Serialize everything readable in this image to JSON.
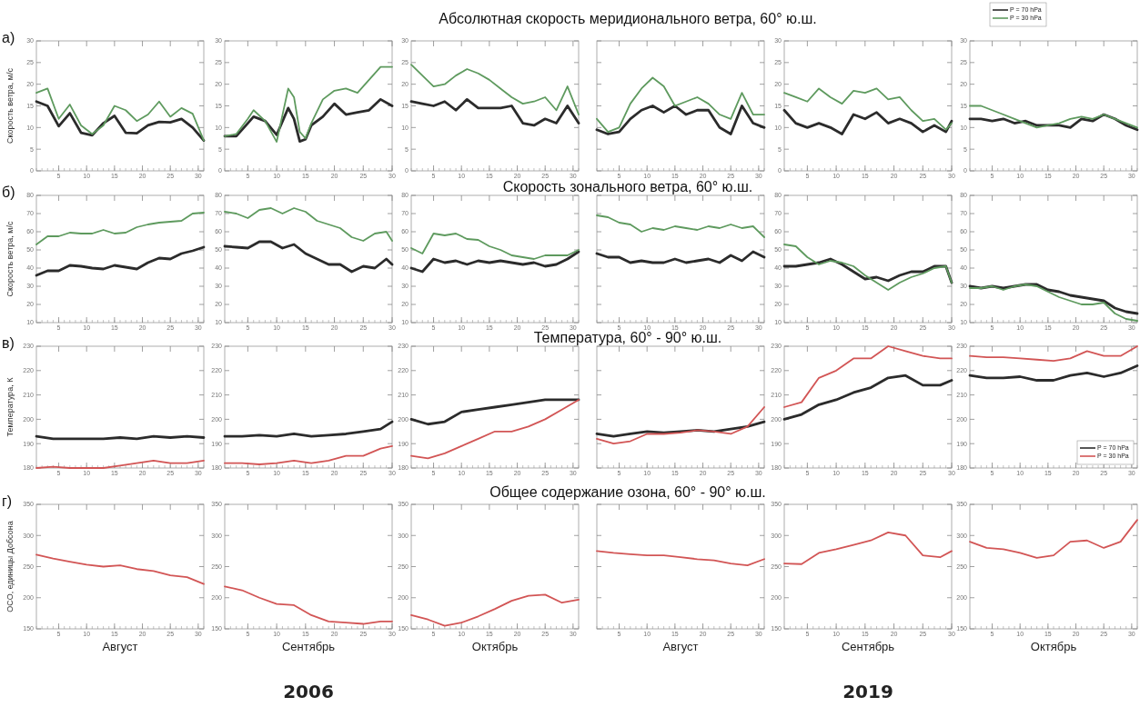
{
  "chart_data": [
    {
      "type": "line",
      "ylabel": "Скорость ветра, м/с",
      "annotations": [
        "а)"
      ],
      "x": [
        1,
        3,
        5,
        7,
        9,
        11,
        13,
        15,
        17,
        19,
        21,
        23,
        25,
        27,
        29,
        31
      ],
      "xlim": [
        1,
        31
      ],
      "xticks": [
        5,
        10,
        15,
        20,
        25,
        30
      ],
      "ylim": [
        0,
        30
      ],
      "yticks": [
        0,
        5,
        10,
        15,
        20,
        25,
        30
      ],
      "series": [
        {
          "color": "#2b2b2b",
          "values": [
            16,
            15,
            10.3,
            13.3,
            8.8,
            8.2,
            11,
            12.7,
            8.8,
            8.7,
            10.5,
            11.3,
            11.2,
            12,
            10,
            7
          ]
        },
        {
          "color": "#5e9a5e",
          "values": [
            18,
            19,
            12,
            15.3,
            10.5,
            8.5,
            10.5,
            15,
            14,
            11.5,
            13,
            16,
            12.5,
            14.5,
            13.2,
            7
          ]
        }
      ]
    },
    {
      "type": "line",
      "x": [
        1,
        3,
        5,
        6,
        8,
        10,
        12,
        13,
        14,
        15,
        16,
        18,
        20,
        22,
        24,
        26,
        28,
        30
      ],
      "xlim": [
        1,
        30
      ],
      "xticks": [
        5,
        10,
        15,
        20,
        25,
        30
      ],
      "ylim": [
        0,
        30
      ],
      "yticks": [
        0,
        5,
        10,
        15,
        20,
        25,
        30
      ],
      "series": [
        {
          "color": "#2b2b2b",
          "values": [
            8,
            8,
            11,
            12.5,
            11.5,
            8.3,
            14.5,
            12,
            6.8,
            7.3,
            10.5,
            12.5,
            15.5,
            13,
            13.5,
            14,
            16.5,
            15
          ]
        },
        {
          "color": "#5e9a5e",
          "values": [
            8,
            8.5,
            12,
            14,
            11.5,
            6.7,
            19,
            17,
            9,
            7.5,
            11,
            16.5,
            18.5,
            19,
            18,
            21,
            24,
            24
          ]
        }
      ]
    },
    {
      "type": "line",
      "x": [
        1,
        3,
        5,
        7,
        9,
        11,
        13,
        15,
        17,
        19,
        21,
        23,
        25,
        27,
        29,
        31
      ],
      "xlim": [
        1,
        31
      ],
      "xticks": [
        5,
        10,
        15,
        20,
        25,
        30
      ],
      "ylim": [
        0,
        30
      ],
      "yticks": [
        0,
        5,
        10,
        15,
        20,
        25,
        30
      ],
      "series": [
        {
          "color": "#2b2b2b",
          "values": [
            16,
            15.5,
            15,
            16,
            14,
            16.5,
            14.5,
            14.5,
            14.5,
            15,
            11,
            10.5,
            12,
            11,
            15,
            11
          ]
        },
        {
          "color": "#5e9a5e",
          "values": [
            24.5,
            22,
            19.5,
            20,
            22,
            23.5,
            22.5,
            21,
            19,
            17,
            15.5,
            16,
            17,
            14,
            19.5,
            13
          ]
        }
      ]
    },
    {
      "type": "line",
      "title": "Абсолютная скорость меридионального ветра, 60° ю.ш.",
      "tick_labels": "x",
      "x": [
        1,
        3,
        5,
        7,
        9,
        11,
        13,
        15,
        17,
        19,
        21,
        23,
        25,
        27,
        29,
        31
      ],
      "xlim": [
        1,
        31
      ],
      "xticks": [
        5,
        10,
        15,
        20,
        25,
        30
      ],
      "ylim": [
        0,
        30
      ],
      "yticks": [
        0,
        5,
        10,
        15,
        20,
        25,
        30
      ],
      "series": [
        {
          "color": "#2b2b2b",
          "values": [
            9.5,
            8.5,
            9,
            12,
            14,
            15,
            13.5,
            15,
            13,
            14,
            14,
            10,
            8.5,
            15,
            11,
            10
          ]
        },
        {
          "color": "#5e9a5e",
          "values": [
            12,
            9,
            10,
            15.5,
            19,
            21.5,
            19.5,
            15,
            16,
            17,
            15.5,
            13,
            12,
            18,
            13,
            13
          ]
        }
      ]
    },
    {
      "type": "line",
      "x": [
        1,
        3,
        5,
        7,
        9,
        11,
        13,
        15,
        17,
        19,
        21,
        23,
        25,
        27,
        29,
        30
      ],
      "xlim": [
        1,
        30
      ],
      "xticks": [
        5,
        10,
        15,
        20,
        25,
        30
      ],
      "ylim": [
        0,
        30
      ],
      "yticks": [
        0,
        5,
        10,
        15,
        20,
        25,
        30
      ],
      "series": [
        {
          "color": "#2b2b2b",
          "values": [
            14,
            11,
            10,
            11,
            10,
            8.5,
            13,
            12,
            13.5,
            11,
            12,
            11,
            9,
            10.5,
            9,
            11.5
          ]
        },
        {
          "color": "#5e9a5e",
          "values": [
            18,
            17,
            16,
            19,
            17,
            15.5,
            18.5,
            18,
            19,
            16.5,
            17,
            14,
            11.5,
            12,
            9.5,
            11
          ]
        }
      ]
    },
    {
      "type": "line",
      "legend": "top left",
      "x": [
        1,
        3,
        5,
        7,
        9,
        11,
        13,
        15,
        17,
        19,
        21,
        23,
        25,
        27,
        29,
        31
      ],
      "xlim": [
        1,
        31
      ],
      "xticks": [
        5,
        10,
        15,
        20,
        25,
        30
      ],
      "ylim": [
        0,
        30
      ],
      "yticks": [
        0,
        5,
        10,
        15,
        20,
        25,
        30
      ],
      "series": [
        {
          "name": "P = 70 hPa",
          "color": "#2b2b2b",
          "values": [
            12,
            12,
            11.5,
            12,
            11,
            11.5,
            10.5,
            10.5,
            10.5,
            10,
            12,
            11.5,
            13,
            12,
            10.5,
            9.5
          ]
        },
        {
          "name": "P = 30 hPa",
          "color": "#5e9a5e",
          "values": [
            15,
            15,
            14,
            13,
            12,
            11,
            10,
            10.5,
            11,
            12,
            12.5,
            12,
            13,
            12,
            11,
            10
          ]
        }
      ]
    },
    {
      "type": "line",
      "ylabel": "Скорость ветра, м/с",
      "annotations": [
        "б)"
      ],
      "x": [
        1,
        3,
        5,
        7,
        9,
        11,
        13,
        15,
        17,
        19,
        21,
        23,
        25,
        27,
        29,
        31
      ],
      "xlim": [
        1,
        31
      ],
      "xticks": [
        5,
        10,
        15,
        20,
        25,
        30
      ],
      "ylim": [
        10,
        80
      ],
      "yticks": [
        10,
        20,
        30,
        40,
        50,
        60,
        70,
        80
      ],
      "series": [
        {
          "color": "#2b2b2b",
          "values": [
            36,
            38.5,
            38.5,
            41.5,
            41,
            40,
            39.5,
            41.5,
            40.5,
            39.5,
            43,
            45.5,
            45,
            48,
            49.5,
            51.5
          ]
        },
        {
          "color": "#5e9a5e",
          "values": [
            53,
            57.5,
            57.5,
            59.5,
            59,
            59,
            61,
            59,
            59.5,
            62.5,
            64,
            65,
            65.5,
            66,
            70,
            70.5
          ]
        }
      ]
    },
    {
      "type": "line",
      "x": [
        1,
        3,
        5,
        7,
        9,
        11,
        13,
        15,
        17,
        19,
        21,
        23,
        25,
        27,
        29,
        30
      ],
      "xlim": [
        1,
        30
      ],
      "xticks": [
        5,
        10,
        15,
        20,
        25,
        30
      ],
      "ylim": [
        10,
        80
      ],
      "yticks": [
        10,
        20,
        30,
        40,
        50,
        60,
        70,
        80
      ],
      "series": [
        {
          "color": "#2b2b2b",
          "values": [
            52,
            51.5,
            51,
            54.5,
            54.5,
            51,
            53,
            48,
            45,
            42,
            42,
            38,
            41,
            40,
            45,
            42
          ]
        },
        {
          "color": "#5e9a5e",
          "values": [
            71,
            70,
            67.5,
            72,
            73,
            70,
            73,
            71,
            66,
            64,
            62,
            57,
            55,
            59,
            60,
            55
          ]
        }
      ]
    },
    {
      "type": "line",
      "x": [
        1,
        3,
        5,
        7,
        9,
        11,
        13,
        15,
        17,
        19,
        21,
        23,
        25,
        27,
        29,
        31
      ],
      "xlim": [
        1,
        31
      ],
      "xticks": [
        5,
        10,
        15,
        20,
        25,
        30
      ],
      "ylim": [
        10,
        80
      ],
      "yticks": [
        10,
        20,
        30,
        40,
        50,
        60,
        70,
        80
      ],
      "series": [
        {
          "color": "#2b2b2b",
          "values": [
            40,
            38,
            45,
            43,
            44,
            42,
            44,
            43,
            44,
            43,
            42,
            43,
            41,
            42,
            45,
            49
          ]
        },
        {
          "color": "#5e9a5e",
          "values": [
            51,
            48,
            59,
            58,
            59,
            56,
            55.5,
            52,
            50,
            47,
            46,
            45,
            47,
            47,
            47,
            50
          ]
        }
      ]
    },
    {
      "type": "line",
      "title": "Скорость зонального ветра, 60° ю.ш.",
      "tick_labels": "x",
      "x": [
        1,
        3,
        5,
        7,
        9,
        11,
        13,
        15,
        17,
        19,
        21,
        23,
        25,
        27,
        29,
        31
      ],
      "xlim": [
        1,
        31
      ],
      "xticks": [
        5,
        10,
        15,
        20,
        25,
        30
      ],
      "ylim": [
        10,
        80
      ],
      "yticks": [
        10,
        20,
        30,
        40,
        50,
        60,
        70,
        80
      ],
      "series": [
        {
          "color": "#2b2b2b",
          "values": [
            48,
            46,
            46,
            43,
            44,
            43,
            43,
            45,
            43,
            44,
            45,
            43,
            47,
            44,
            49,
            46
          ]
        },
        {
          "color": "#5e9a5e",
          "values": [
            69,
            68,
            65,
            64,
            60,
            62,
            61,
            63,
            62,
            61,
            63,
            62,
            64,
            62,
            63,
            57
          ]
        }
      ]
    },
    {
      "type": "line",
      "x": [
        1,
        3,
        5,
        7,
        9,
        11,
        13,
        15,
        17,
        19,
        21,
        23,
        25,
        27,
        29,
        30
      ],
      "xlim": [
        1,
        30
      ],
      "xticks": [
        5,
        10,
        15,
        20,
        25,
        30
      ],
      "ylim": [
        10,
        80
      ],
      "yticks": [
        10,
        20,
        30,
        40,
        50,
        60,
        70,
        80
      ],
      "series": [
        {
          "color": "#2b2b2b",
          "values": [
            41,
            41,
            42,
            43,
            45,
            42,
            38,
            34,
            35,
            33,
            36,
            38,
            38,
            41,
            41,
            32
          ]
        },
        {
          "color": "#5e9a5e",
          "values": [
            53,
            52,
            46,
            42,
            44,
            43,
            41,
            36,
            32,
            28,
            32,
            35,
            37,
            40,
            41,
            32
          ]
        }
      ]
    },
    {
      "type": "line",
      "x": [
        1,
        3,
        5,
        7,
        9,
        11,
        13,
        15,
        17,
        19,
        21,
        23,
        25,
        27,
        29,
        31
      ],
      "xlim": [
        1,
        31
      ],
      "xticks": [
        5,
        10,
        15,
        20,
        25,
        30
      ],
      "ylim": [
        10,
        80
      ],
      "yticks": [
        10,
        20,
        30,
        40,
        50,
        60,
        70,
        80
      ],
      "series": [
        {
          "color": "#2b2b2b",
          "values": [
            30,
            29,
            30,
            29,
            30,
            31,
            31,
            28,
            27,
            25,
            24,
            23,
            22,
            18,
            16,
            15
          ]
        },
        {
          "color": "#5e9a5e",
          "values": [
            29,
            29,
            30,
            28,
            30,
            31,
            30,
            27,
            24,
            22,
            20,
            20,
            21,
            15,
            12,
            11
          ]
        }
      ]
    },
    {
      "type": "line",
      "ylabel": "Температура, К",
      "annotations": [
        "в)"
      ],
      "x": [
        1,
        4,
        7,
        10,
        13,
        16,
        19,
        22,
        25,
        28,
        31
      ],
      "xlim": [
        1,
        31
      ],
      "xticks": [
        5,
        10,
        15,
        20,
        25,
        30
      ],
      "ylim": [
        180,
        230
      ],
      "yticks": [
        180,
        190,
        200,
        210,
        220,
        230
      ],
      "series": [
        {
          "color": "#2b2b2b",
          "values": [
            193,
            192,
            192,
            192,
            192,
            192.5,
            192,
            193,
            192.5,
            193,
            192.5
          ]
        },
        {
          "color": "#d25555",
          "values": [
            180,
            180.5,
            180,
            180,
            180,
            181,
            182,
            183,
            182,
            182,
            183
          ]
        }
      ]
    },
    {
      "type": "line",
      "x": [
        1,
        4,
        7,
        10,
        13,
        16,
        19,
        22,
        25,
        28,
        30
      ],
      "xlim": [
        1,
        30
      ],
      "xticks": [
        5,
        10,
        15,
        20,
        25,
        30
      ],
      "ylim": [
        180,
        230
      ],
      "yticks": [
        180,
        190,
        200,
        210,
        220,
        230
      ],
      "series": [
        {
          "color": "#2b2b2b",
          "values": [
            193,
            193,
            193.5,
            193,
            194,
            193,
            193.5,
            194,
            195,
            196,
            199
          ]
        },
        {
          "color": "#d25555",
          "values": [
            182,
            182,
            181.5,
            182,
            183,
            182,
            183,
            185,
            185,
            188,
            189
          ]
        }
      ]
    },
    {
      "type": "line",
      "x": [
        1,
        4,
        7,
        10,
        13,
        16,
        19,
        22,
        25,
        28,
        31
      ],
      "xlim": [
        1,
        31
      ],
      "xticks": [
        5,
        10,
        15,
        20,
        25,
        30
      ],
      "ylim": [
        180,
        230
      ],
      "yticks": [
        180,
        190,
        200,
        210,
        220,
        230
      ],
      "series": [
        {
          "color": "#2b2b2b",
          "values": [
            200,
            198,
            199,
            203,
            204,
            205,
            206,
            207,
            208,
            208,
            208
          ]
        },
        {
          "color": "#d25555",
          "values": [
            185,
            184,
            186,
            189,
            192,
            195,
            195,
            197,
            200,
            204,
            208
          ]
        }
      ]
    },
    {
      "type": "line",
      "title": "Температура, 60° - 90° ю.ш.",
      "tick_labels": "x",
      "x": [
        1,
        4,
        7,
        10,
        13,
        16,
        19,
        22,
        25,
        28,
        31
      ],
      "xlim": [
        1,
        31
      ],
      "xticks": [
        5,
        10,
        15,
        20,
        25,
        30
      ],
      "ylim": [
        180,
        230
      ],
      "yticks": [
        180,
        190,
        200,
        210,
        220,
        230
      ],
      "series": [
        {
          "color": "#2b2b2b",
          "values": [
            194,
            193,
            194,
            195,
            194.5,
            195,
            195.5,
            195,
            196,
            197,
            199
          ]
        },
        {
          "color": "#d25555",
          "values": [
            192,
            190,
            191,
            194,
            194,
            194.5,
            195.5,
            195,
            194,
            197,
            205
          ]
        }
      ]
    },
    {
      "type": "line",
      "x": [
        1,
        4,
        7,
        10,
        13,
        16,
        19,
        22,
        25,
        28,
        30
      ],
      "xlim": [
        1,
        30
      ],
      "xticks": [
        5,
        10,
        15,
        20,
        25,
        30
      ],
      "ylim": [
        180,
        230
      ],
      "yticks": [
        180,
        190,
        200,
        210,
        220,
        230
      ],
      "series": [
        {
          "color": "#2b2b2b",
          "values": [
            200,
            202,
            206,
            208,
            211,
            213,
            217,
            218,
            214,
            214,
            216
          ]
        },
        {
          "color": "#d25555",
          "values": [
            205,
            207,
            217,
            220,
            225,
            225,
            230,
            228,
            226,
            225,
            225
          ]
        }
      ]
    },
    {
      "type": "line",
      "legend": "bottom right",
      "x": [
        1,
        4,
        7,
        10,
        13,
        16,
        19,
        22,
        25,
        28,
        31
      ],
      "xlim": [
        1,
        31
      ],
      "xticks": [
        5,
        10,
        15,
        20,
        25,
        30
      ],
      "ylim": [
        180,
        230
      ],
      "yticks": [
        180,
        190,
        200,
        210,
        220,
        230
      ],
      "series": [
        {
          "name": "P = 70 hPa",
          "color": "#2b2b2b",
          "values": [
            218,
            217,
            217,
            217.5,
            216,
            216,
            218,
            219,
            217.5,
            219,
            222
          ]
        },
        {
          "name": "P = 30 hPa",
          "color": "#d25555",
          "values": [
            226,
            225.5,
            225.5,
            225,
            224.5,
            224,
            225,
            228,
            226,
            226,
            230
          ]
        }
      ]
    },
    {
      "type": "line",
      "ylabel": "ОСО, единицы Добсона",
      "xlabel": "Август",
      "annotations": [
        "г)"
      ],
      "x": [
        1,
        4,
        7,
        10,
        13,
        16,
        19,
        22,
        25,
        28,
        31
      ],
      "xlim": [
        1,
        31
      ],
      "xticks": [
        5,
        10,
        15,
        20,
        25,
        30
      ],
      "ylim": [
        150,
        350
      ],
      "yticks": [
        150,
        200,
        250,
        300,
        350
      ],
      "series": [
        {
          "color": "#d25555",
          "values": [
            269,
            263,
            258,
            253,
            250,
            252,
            246,
            243,
            236,
            233,
            222
          ]
        }
      ]
    },
    {
      "type": "line",
      "xlabel": "Сентябрь",
      "annotations": [
        "2006"
      ],
      "x": [
        1,
        4,
        7,
        10,
        13,
        16,
        19,
        22,
        25,
        28,
        30
      ],
      "xlim": [
        1,
        30
      ],
      "xticks": [
        5,
        10,
        15,
        20,
        25,
        30
      ],
      "ylim": [
        150,
        350
      ],
      "yticks": [
        150,
        200,
        250,
        300,
        350
      ],
      "series": [
        {
          "color": "#d25555",
          "values": [
            218,
            212,
            200,
            190,
            188,
            172,
            162,
            160,
            158,
            162,
            162
          ]
        }
      ]
    },
    {
      "type": "line",
      "xlabel": "Октябрь",
      "x": [
        1,
        4,
        7,
        10,
        13,
        16,
        19,
        22,
        25,
        28,
        31
      ],
      "xlim": [
        1,
        31
      ],
      "xticks": [
        5,
        10,
        15,
        20,
        25,
        30
      ],
      "ylim": [
        150,
        350
      ],
      "yticks": [
        150,
        200,
        250,
        300,
        350
      ],
      "series": [
        {
          "color": "#d25555",
          "values": [
            172,
            165,
            155,
            160,
            170,
            182,
            195,
            203,
            205,
            192,
            197
          ]
        }
      ]
    },
    {
      "type": "line",
      "title": "Общее содержание озона, 60° - 90° ю.ш.",
      "tick_labels": "x",
      "xlabel": "Август",
      "x": [
        1,
        4,
        7,
        10,
        13,
        16,
        19,
        22,
        25,
        28,
        31
      ],
      "xlim": [
        1,
        31
      ],
      "xticks": [
        5,
        10,
        15,
        20,
        25,
        30
      ],
      "ylim": [
        150,
        350
      ],
      "yticks": [
        150,
        200,
        250,
        300,
        350
      ],
      "series": [
        {
          "color": "#d25555",
          "values": [
            275,
            272,
            270,
            268,
            268,
            265,
            262,
            260,
            255,
            252,
            262
          ]
        }
      ]
    },
    {
      "type": "line",
      "xlabel": "Сентябрь",
      "annotations": [
        "2019"
      ],
      "x": [
        1,
        4,
        7,
        10,
        13,
        16,
        19,
        22,
        25,
        28,
        30
      ],
      "xlim": [
        1,
        30
      ],
      "xticks": [
        5,
        10,
        15,
        20,
        25,
        30
      ],
      "ylim": [
        150,
        350
      ],
      "yticks": [
        150,
        200,
        250,
        300,
        350
      ],
      "series": [
        {
          "color": "#d25555",
          "values": [
            255,
            254,
            272,
            278,
            285,
            292,
            305,
            300,
            268,
            265,
            275
          ]
        }
      ]
    },
    {
      "type": "line",
      "xlabel": "Октябрь",
      "x": [
        1,
        4,
        7,
        10,
        13,
        16,
        19,
        22,
        25,
        28,
        31
      ],
      "xlim": [
        1,
        31
      ],
      "xticks": [
        5,
        10,
        15,
        20,
        25,
        30
      ],
      "ylim": [
        150,
        350
      ],
      "yticks": [
        150,
        200,
        250,
        300,
        350
      ],
      "series": [
        {
          "color": "#d25555",
          "values": [
            290,
            280,
            278,
            272,
            264,
            268,
            290,
            292,
            280,
            290,
            325
          ]
        }
      ]
    }
  ]
}
